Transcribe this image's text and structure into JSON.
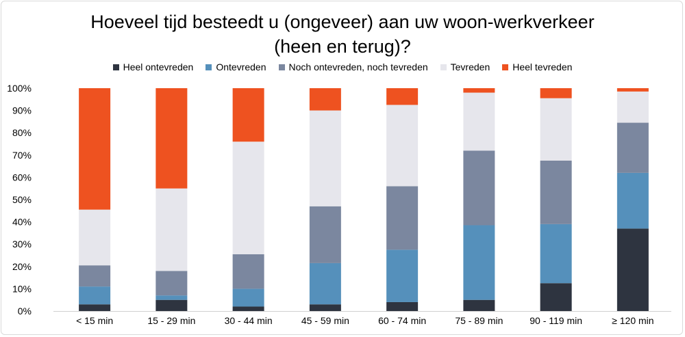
{
  "chart_data": {
    "type": "bar",
    "stacked": true,
    "title": "Hoeveel tijd besteedt u (ongeveer) aan uw woon-werkverkeer (heen en terug)?",
    "title_lines": [
      "Hoeveel tijd besteedt u (ongeveer) aan uw woon-werkverkeer",
      "(heen en terug)?"
    ],
    "categories": [
      "< 15 min",
      "15 - 29 min",
      "30 - 44 min",
      "45 - 59 min",
      "60 - 74 min",
      "75 - 89 min",
      "90 - 119 min",
      "≥ 120 min"
    ],
    "ylim": [
      0,
      100
    ],
    "yticks": [
      "0%",
      "10%",
      "20%",
      "30%",
      "40%",
      "50%",
      "60%",
      "70%",
      "80%",
      "90%",
      "100%"
    ],
    "grid": false,
    "legend_position": "top",
    "series": [
      {
        "name": "Heel ontevreden",
        "color": "#2e3440",
        "values": [
          3,
          5,
          2,
          3,
          4,
          5,
          12.5,
          37
        ]
      },
      {
        "name": "Ontevreden",
        "color": "#5590bb",
        "values": [
          8,
          2,
          8,
          18.5,
          23.5,
          33.5,
          26.5,
          25
        ]
      },
      {
        "name": "Noch ontevreden, noch tevreden",
        "color": "#7b879f",
        "values": [
          9.5,
          11,
          15.5,
          25.5,
          28.5,
          33.5,
          28.5,
          22.5
        ]
      },
      {
        "name": "Tevreden",
        "color": "#e6e6ec",
        "values": [
          25,
          37,
          50.5,
          43,
          36.5,
          26,
          28,
          14
        ]
      },
      {
        "name": "Heel tevreden",
        "color": "#ee5220",
        "values": [
          54.5,
          45,
          24,
          10,
          7.5,
          2,
          4.5,
          1.5
        ]
      }
    ]
  }
}
